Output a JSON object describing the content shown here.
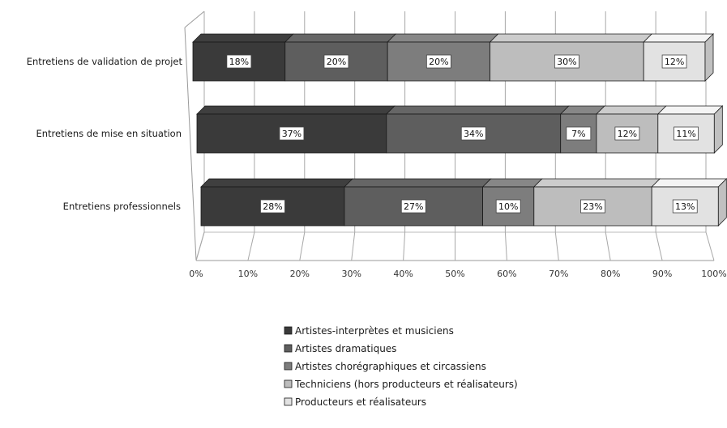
{
  "chart_data": {
    "type": "bar",
    "stacked": true,
    "orientation": "horizontal",
    "three_d": true,
    "categories": [
      "Entretiens de validation de projet",
      "Entretiens de mise en situation",
      "Entretiens professionnels"
    ],
    "series": [
      {
        "name": "Artistes-interprètes et musiciens",
        "values": [
          18,
          37,
          28
        ],
        "labels": [
          "18%",
          "37%",
          "28%"
        ],
        "color": "#3a3a3a"
      },
      {
        "name": "Artistes dramatiques",
        "values": [
          20,
          34,
          27
        ],
        "labels": [
          "20%",
          "34%",
          "27%"
        ],
        "color": "#5e5e5e"
      },
      {
        "name": "Artistes chorégraphiques et circassiens",
        "values": [
          20,
          7,
          10
        ],
        "labels": [
          "20%",
          "7%",
          "10%"
        ],
        "color": "#7d7d7d"
      },
      {
        "name": "Techniciens (hors producteurs et réalisateurs)",
        "values": [
          30,
          12,
          23
        ],
        "labels": [
          "30%",
          "12%",
          "23%"
        ],
        "color": "#bdbdbd"
      },
      {
        "name": "Producteurs et réalisateurs",
        "values": [
          12,
          11,
          13
        ],
        "labels": [
          "12%",
          "11%",
          "13%"
        ],
        "color": "#e2e2e2"
      }
    ],
    "xlim": [
      0,
      100
    ],
    "x_ticks": [
      "0%",
      "10%",
      "20%",
      "30%",
      "40%",
      "50%",
      "60%",
      "70%",
      "80%",
      "90%",
      "100%"
    ],
    "grid": true,
    "legend_position": "bottom-center",
    "title": "",
    "xlabel": "",
    "ylabel": ""
  }
}
